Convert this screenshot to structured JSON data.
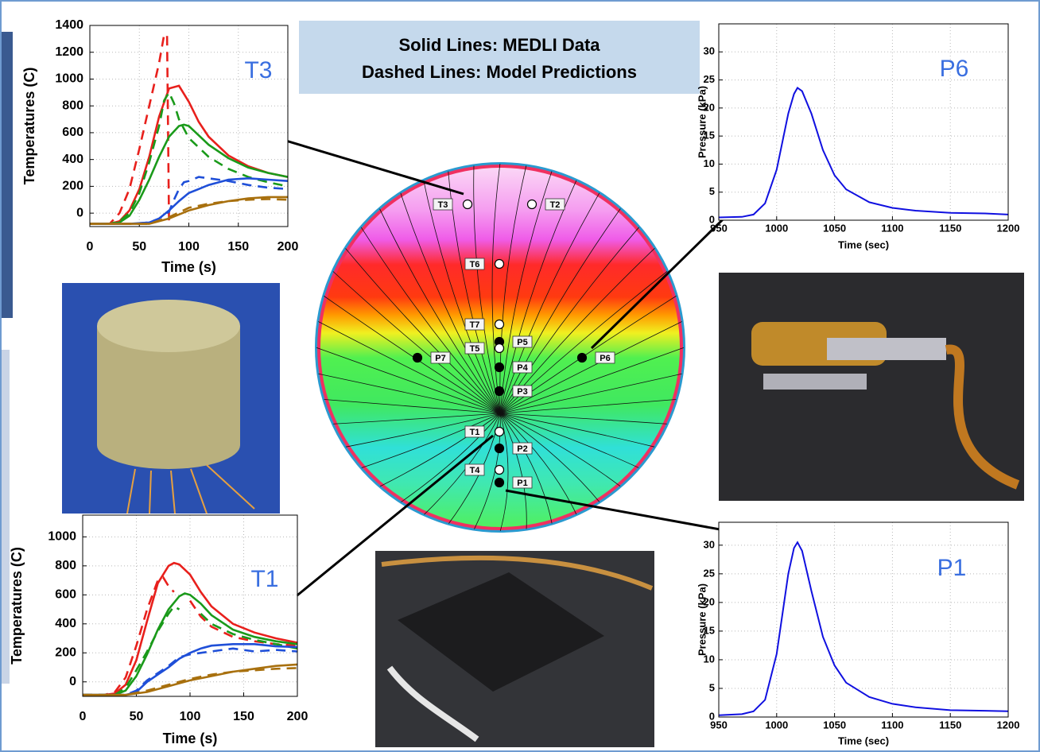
{
  "legend_box": {
    "line1": "Solid Lines: MEDLI Data",
    "line2": "Dashed Lines: Model Predictions"
  },
  "diagram": {
    "sensors": [
      "T3",
      "T2",
      "T6",
      "T7",
      "P5",
      "T5",
      "P4",
      "P3",
      "P7",
      "P6",
      "T1",
      "P2",
      "T4",
      "P1"
    ]
  },
  "chart_data": [
    {
      "type": "line",
      "title": "T3",
      "x_label": "Time (s)",
      "y_label": "Temperatures (C)",
      "xlim": [
        0,
        200
      ],
      "ylim": [
        -100,
        1400
      ],
      "xticks": [
        0,
        50,
        100,
        150,
        200
      ],
      "yticks": [
        0,
        200,
        400,
        600,
        800,
        1000,
        1200,
        1400
      ],
      "grid": true,
      "series": [
        {
          "color": "#e8201c",
          "dash": false,
          "x": [
            0,
            20,
            30,
            40,
            50,
            60,
            70,
            80,
            90,
            100,
            110,
            120,
            140,
            160,
            180,
            200
          ],
          "values": [
            -80,
            -80,
            -60,
            20,
            180,
            420,
            720,
            930,
            950,
            830,
            680,
            570,
            430,
            350,
            300,
            270
          ]
        },
        {
          "color": "#e8201c",
          "dash": true,
          "x": [
            0,
            20,
            30,
            40,
            50,
            60,
            70,
            75,
            78,
            80
          ],
          "values": [
            -80,
            -80,
            0,
            180,
            480,
            800,
            1120,
            1330,
            1330,
            -80
          ]
        },
        {
          "color": "#1a9a1a",
          "dash": false,
          "x": [
            0,
            20,
            30,
            40,
            50,
            60,
            70,
            80,
            90,
            95,
            100,
            110,
            120,
            140,
            160,
            180,
            200
          ],
          "values": [
            -80,
            -80,
            -70,
            -20,
            100,
            250,
            420,
            570,
            650,
            660,
            650,
            580,
            510,
            410,
            340,
            300,
            270
          ]
        },
        {
          "color": "#1a9a1a",
          "dash": true,
          "x": [
            0,
            20,
            30,
            40,
            50,
            60,
            70,
            75,
            80,
            85,
            90,
            100,
            120,
            140,
            160,
            180,
            200
          ],
          "values": [
            -80,
            -80,
            -60,
            0,
            150,
            380,
            650,
            840,
            900,
            820,
            700,
            560,
            420,
            330,
            270,
            230,
            200
          ]
        },
        {
          "color": "#1f4fd8",
          "dash": false,
          "x": [
            0,
            40,
            60,
            70,
            80,
            90,
            100,
            110,
            120,
            140,
            160,
            180,
            200
          ],
          "values": [
            -80,
            -80,
            -70,
            -40,
            20,
            90,
            150,
            180,
            210,
            250,
            260,
            250,
            240
          ]
        },
        {
          "color": "#1f4fd8",
          "dash": true,
          "x": [
            0,
            40,
            60,
            70,
            80,
            85,
            90,
            95,
            100,
            110,
            120,
            130,
            140,
            160,
            180,
            200
          ],
          "values": [
            -80,
            -80,
            -70,
            -40,
            10,
            100,
            180,
            230,
            240,
            270,
            260,
            250,
            240,
            210,
            190,
            180
          ]
        },
        {
          "color": "#a8700e",
          "dash": false,
          "x": [
            0,
            60,
            80,
            100,
            120,
            140,
            160,
            180,
            200
          ],
          "values": [
            -80,
            -80,
            -40,
            20,
            60,
            90,
            110,
            120,
            120
          ]
        },
        {
          "color": "#a8700e",
          "dash": true,
          "x": [
            0,
            60,
            80,
            100,
            120,
            140,
            160,
            180,
            200
          ],
          "values": [
            -80,
            -80,
            -30,
            40,
            70,
            90,
            100,
            105,
            100
          ]
        }
      ]
    },
    {
      "type": "line",
      "title": "P6",
      "x_label": "Time (sec)",
      "y_label": "Pressure (kPa)",
      "xlim": [
        950,
        1200
      ],
      "ylim": [
        0,
        35
      ],
      "xticks": [
        950,
        1000,
        1050,
        1100,
        1150,
        1200
      ],
      "yticks": [
        0,
        5,
        10,
        15,
        20,
        25,
        30
      ],
      "grid": true,
      "series": [
        {
          "color": "#1010e0",
          "dash": false,
          "x": [
            950,
            970,
            980,
            990,
            1000,
            1005,
            1010,
            1015,
            1018,
            1022,
            1030,
            1040,
            1050,
            1060,
            1080,
            1100,
            1120,
            1150,
            1180,
            1200
          ],
          "values": [
            0.5,
            0.6,
            1.0,
            3,
            9,
            14,
            19,
            22.5,
            23.6,
            23,
            19,
            12.5,
            8,
            5.5,
            3.2,
            2.2,
            1.7,
            1.3,
            1.2,
            1.0
          ]
        }
      ]
    },
    {
      "type": "line",
      "title": "T1",
      "x_label": "Time (s)",
      "y_label": "Temperatures (C)",
      "xlim": [
        0,
        200
      ],
      "ylim": [
        -100,
        1150
      ],
      "xticks": [
        0,
        50,
        100,
        150,
        200
      ],
      "yticks": [
        0,
        200,
        400,
        600,
        800,
        1000
      ],
      "grid": true,
      "series": [
        {
          "color": "#e8201c",
          "dash": false,
          "x": [
            0,
            20,
            30,
            40,
            50,
            60,
            70,
            80,
            85,
            90,
            100,
            110,
            120,
            140,
            160,
            180,
            200
          ],
          "values": [
            -90,
            -90,
            -80,
            -20,
            150,
            420,
            680,
            800,
            820,
            810,
            740,
            620,
            520,
            400,
            340,
            300,
            270
          ]
        },
        {
          "color": "#e8201c",
          "dash": true,
          "x": [
            0,
            20,
            30,
            40,
            50,
            60,
            70,
            75,
            80,
            85,
            90,
            100,
            110,
            120,
            140,
            160,
            180,
            200
          ],
          "values": [
            -90,
            -90,
            -70,
            30,
            250,
            500,
            700,
            720,
            660,
            620,
            null,
            560,
            450,
            380,
            310,
            280,
            260,
            250
          ]
        },
        {
          "color": "#1a9a1a",
          "dash": false,
          "x": [
            0,
            30,
            40,
            50,
            60,
            70,
            80,
            90,
            95,
            100,
            110,
            120,
            140,
            160,
            180,
            200
          ],
          "values": [
            -90,
            -90,
            -60,
            40,
            190,
            360,
            500,
            590,
            610,
            600,
            540,
            460,
            360,
            310,
            280,
            260
          ]
        },
        {
          "color": "#1a9a1a",
          "dash": true,
          "x": [
            0,
            30,
            40,
            50,
            60,
            70,
            80,
            85,
            90,
            100,
            110,
            120,
            140,
            160,
            180,
            200
          ],
          "values": [
            -90,
            -90,
            -40,
            80,
            210,
            350,
            470,
            520,
            500,
            null,
            470,
            400,
            330,
            290,
            260,
            230
          ]
        },
        {
          "color": "#1f4fd8",
          "dash": false,
          "x": [
            0,
            40,
            50,
            60,
            70,
            80,
            90,
            100,
            110,
            120,
            140,
            160,
            180,
            200
          ],
          "values": [
            -90,
            -90,
            -70,
            0,
            50,
            100,
            160,
            200,
            230,
            250,
            260,
            260,
            245,
            240
          ]
        },
        {
          "color": "#1f4fd8",
          "dash": true,
          "x": [
            0,
            40,
            50,
            60,
            70,
            80,
            90,
            100,
            110,
            120,
            140,
            160,
            180,
            200
          ],
          "values": [
            -90,
            -90,
            -60,
            10,
            60,
            110,
            170,
            190,
            200,
            210,
            230,
            210,
            220,
            210
          ]
        },
        {
          "color": "#a8700e",
          "dash": false,
          "x": [
            0,
            40,
            60,
            80,
            100,
            120,
            140,
            160,
            180,
            200
          ],
          "values": [
            -90,
            -90,
            -70,
            -30,
            10,
            40,
            70,
            90,
            110,
            120
          ]
        },
        {
          "color": "#a8700e",
          "dash": true,
          "x": [
            0,
            40,
            60,
            80,
            100,
            120,
            140,
            160,
            180,
            200
          ],
          "values": [
            -90,
            -90,
            -60,
            -20,
            20,
            50,
            70,
            80,
            90,
            95
          ]
        }
      ]
    },
    {
      "type": "line",
      "title": "P1",
      "x_label": "Time (sec)",
      "y_label": "Pressure (kPa)",
      "xlim": [
        950,
        1200
      ],
      "ylim": [
        0,
        34
      ],
      "xticks": [
        950,
        1000,
        1050,
        1100,
        1150,
        1200
      ],
      "yticks": [
        0,
        5,
        10,
        15,
        20,
        25,
        30
      ],
      "grid": true,
      "series": [
        {
          "color": "#1010e0",
          "dash": false,
          "x": [
            950,
            970,
            980,
            990,
            1000,
            1005,
            1010,
            1015,
            1018,
            1022,
            1030,
            1040,
            1050,
            1060,
            1080,
            1100,
            1120,
            1150,
            1180,
            1200
          ],
          "values": [
            0.3,
            0.5,
            1.0,
            3,
            11,
            18,
            25,
            29.5,
            30.5,
            29,
            22,
            14,
            9,
            6,
            3.5,
            2.3,
            1.7,
            1.2,
            1.1,
            1.0
          ]
        }
      ]
    }
  ]
}
